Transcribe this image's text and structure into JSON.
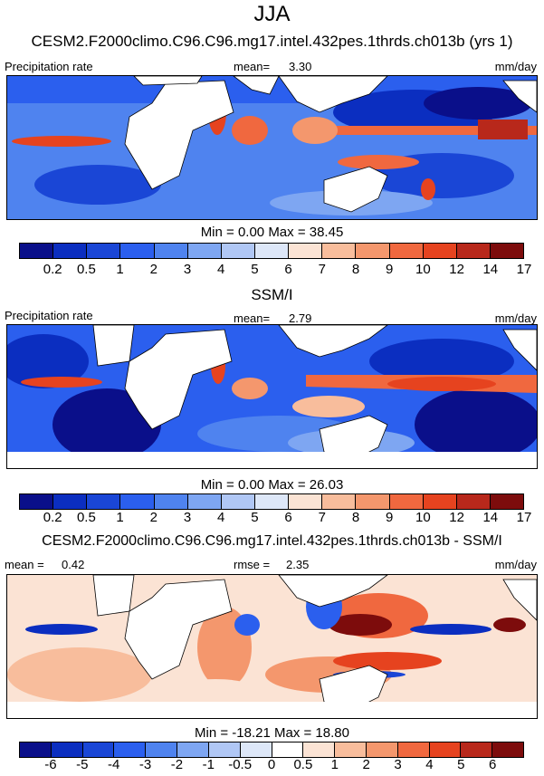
{
  "title": "JJA",
  "units": "mm/day",
  "colors": {
    "full": [
      "#0a0f8a",
      "#0b2ec0",
      "#1a46d6",
      "#2b5fee",
      "#4f83ef",
      "#7ea6f2",
      "#b0c7f5",
      "#dde7f8",
      "#fbe3d4",
      "#f8bd9c",
      "#f4976d",
      "#f0683f",
      "#e6431f",
      "#b8281b",
      "#7d0c0c"
    ],
    "diff": [
      "#0a0f8a",
      "#0b2ec0",
      "#1a46d6",
      "#2b5fee",
      "#4f83ef",
      "#7ea6f2",
      "#b0c7f5",
      "#dde7f8",
      "#ffffff",
      "#fbe3d4",
      "#f8bd9c",
      "#f4976d",
      "#f0683f",
      "#e6431f",
      "#b8281b",
      "#7d0c0c"
    ],
    "land": "#ffffff"
  },
  "panel1": {
    "title": "CESM2.F2000climo.C96.C96.mg17.intel.432pes.1thrds.ch013b (yrs 1)",
    "left_label": "Precipitation rate",
    "stat_label": "mean=",
    "stat_value": "3.30",
    "units": "mm/day",
    "minmax": "Min =   0.00 Max =  38.45",
    "ticks": [
      "0.2",
      "0.5",
      "1",
      "2",
      "3",
      "4",
      "5",
      "6",
      "7",
      "8",
      "9",
      "10",
      "12",
      "14",
      "17"
    ]
  },
  "panel2": {
    "title": "SSM/I",
    "left_label": "Precipitation rate",
    "stat_label": "mean=",
    "stat_value": "2.79",
    "units": "mm/day",
    "minmax": "Min =   0.00 Max =  26.03",
    "ticks": [
      "0.2",
      "0.5",
      "1",
      "2",
      "3",
      "4",
      "5",
      "6",
      "7",
      "8",
      "9",
      "10",
      "12",
      "14",
      "17"
    ]
  },
  "panel3": {
    "title": "CESM2.F2000climo.C96.C96.mg17.intel.432pes.1thrds.ch013b - SSM/I",
    "left_label": "mean =",
    "left_value": "0.42",
    "stat_label": "rmse =",
    "stat_value": "2.35",
    "units": "mm/day",
    "minmax": "Min = -18.21 Max =  18.80",
    "ticks": [
      "-6",
      "-5",
      "-4",
      "-3",
      "-2",
      "-1",
      "-0.5",
      "0",
      "0.5",
      "1",
      "2",
      "3",
      "4",
      "5",
      "6"
    ]
  }
}
